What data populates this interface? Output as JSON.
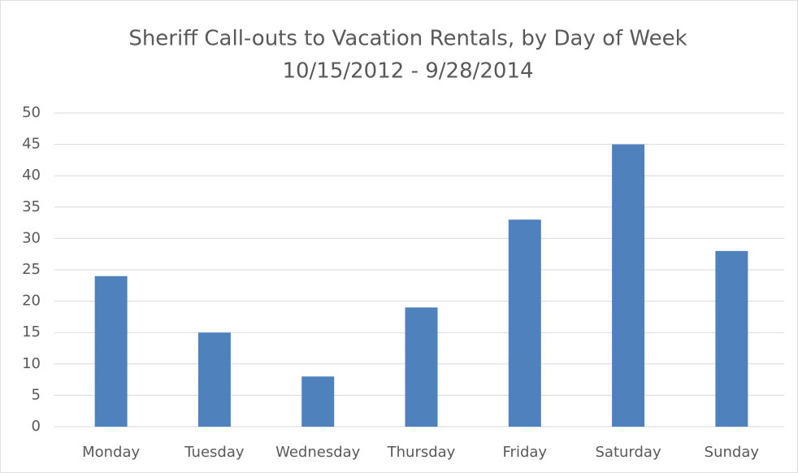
{
  "chart_data": {
    "type": "bar",
    "title": "Sheriff Call-outs to Vacation Rentals, by Day of Week",
    "subtitle": "10/15/2012 - 9/28/2014",
    "categories": [
      "Monday",
      "Tuesday",
      "Wednesday",
      "Thursday",
      "Friday",
      "Saturday",
      "Sunday"
    ],
    "values": [
      24,
      15,
      8,
      19,
      33,
      45,
      28
    ],
    "color": "#4f81bd",
    "ylim": [
      0,
      50
    ],
    "yticks": [
      0,
      5,
      10,
      15,
      20,
      25,
      30,
      35,
      40,
      45,
      50
    ],
    "grid": true
  }
}
